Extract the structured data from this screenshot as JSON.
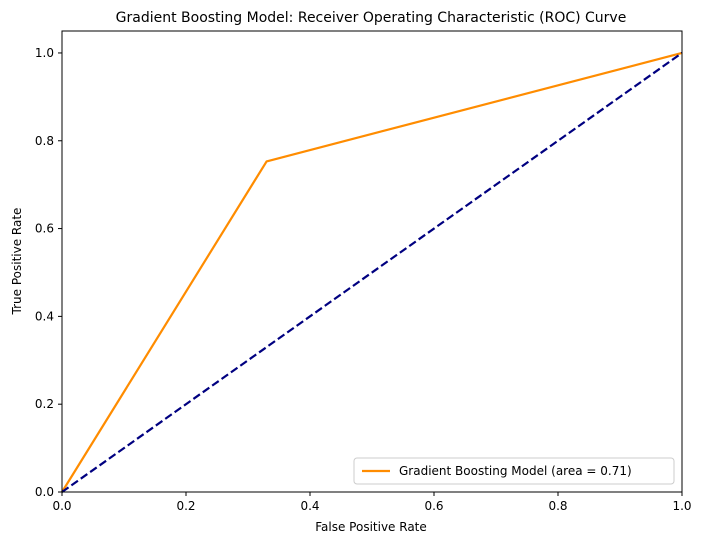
{
  "chart_data": {
    "type": "line",
    "title": "Gradient Boosting Model: Receiver Operating Characteristic (ROC) Curve",
    "xlabel": "False Positive Rate",
    "ylabel": "True Positive Rate",
    "xlim": [
      0.0,
      1.0
    ],
    "ylim": [
      0.0,
      1.05
    ],
    "xticks": [
      0.0,
      0.2,
      0.4,
      0.6,
      0.8,
      1.0
    ],
    "yticks": [
      0.0,
      0.2,
      0.4,
      0.6,
      0.8,
      1.0
    ],
    "xtick_labels": [
      "0.0",
      "0.2",
      "0.4",
      "0.6",
      "0.8",
      "1.0"
    ],
    "ytick_labels": [
      "0.0",
      "0.2",
      "0.4",
      "0.6",
      "0.8",
      "1.0"
    ],
    "grid": false,
    "legend_position": "lower-right",
    "series": [
      {
        "name": "Gradient Boosting Model (area = 0.71)",
        "color": "#ff8c00",
        "style": "solid",
        "x": [
          0.0,
          0.33,
          1.0
        ],
        "y": [
          0.0,
          0.753,
          1.0
        ]
      },
      {
        "color": "#000080",
        "style": "dashed",
        "x": [
          0.0,
          1.0
        ],
        "y": [
          0.0,
          1.0
        ]
      }
    ]
  }
}
